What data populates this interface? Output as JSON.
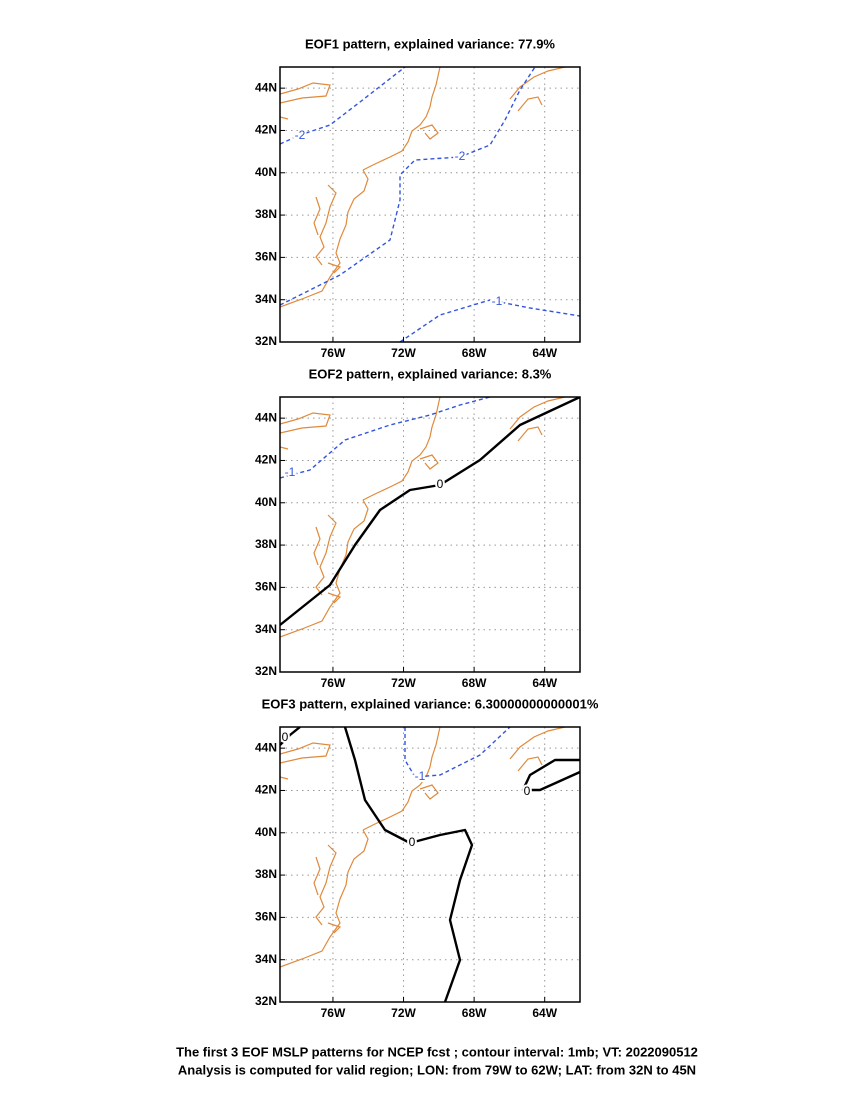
{
  "chart_data": [
    {
      "type": "contour",
      "title": "EOF1 pattern, explained variance: 77.9%",
      "xlim": [
        -79,
        -62
      ],
      "ylim": [
        32,
        45
      ],
      "xticks": [
        {
          "value": -76,
          "label": "76W"
        },
        {
          "value": -72,
          "label": "72W"
        },
        {
          "value": -68,
          "label": "68W"
        },
        {
          "value": -64,
          "label": "64W"
        }
      ],
      "yticks": [
        {
          "value": 32,
          "label": "32N"
        },
        {
          "value": 34,
          "label": "34N"
        },
        {
          "value": 36,
          "label": "36N"
        },
        {
          "value": 38,
          "label": "38N"
        },
        {
          "value": 40,
          "label": "40N"
        },
        {
          "value": 42,
          "label": "42N"
        },
        {
          "value": 44,
          "label": "44N"
        }
      ],
      "grid": true,
      "contours": [
        {
          "level": -2,
          "color": "#3355dd",
          "dashed": true
        },
        {
          "level": -2,
          "color": "#3355dd",
          "dashed": true
        },
        {
          "level": -1,
          "color": "#3355dd",
          "dashed": true
        }
      ]
    },
    {
      "type": "contour",
      "title": "EOF2 pattern, explained variance: 8.3%",
      "xlim": [
        -79,
        -62
      ],
      "ylim": [
        32,
        45
      ],
      "xticks": [
        {
          "value": -76,
          "label": "76W"
        },
        {
          "value": -72,
          "label": "72W"
        },
        {
          "value": -68,
          "label": "68W"
        },
        {
          "value": -64,
          "label": "64W"
        }
      ],
      "yticks": [
        {
          "value": 32,
          "label": "32N"
        },
        {
          "value": 34,
          "label": "34N"
        },
        {
          "value": 36,
          "label": "36N"
        },
        {
          "value": 38,
          "label": "38N"
        },
        {
          "value": 40,
          "label": "40N"
        },
        {
          "value": 42,
          "label": "42N"
        },
        {
          "value": 44,
          "label": "44N"
        }
      ],
      "grid": true,
      "contours": [
        {
          "level": -1,
          "color": "#3355dd",
          "dashed": true
        },
        {
          "level": 0,
          "color": "#000000",
          "dashed": false
        }
      ]
    },
    {
      "type": "contour",
      "title": "EOF3 pattern, explained variance: 6.30000000000001%",
      "xlim": [
        -79,
        -62
      ],
      "ylim": [
        32,
        45
      ],
      "xticks": [
        {
          "value": -76,
          "label": "76W"
        },
        {
          "value": -72,
          "label": "72W"
        },
        {
          "value": -68,
          "label": "68W"
        },
        {
          "value": -64,
          "label": "64W"
        }
      ],
      "yticks": [
        {
          "value": 32,
          "label": "32N"
        },
        {
          "value": 34,
          "label": "34N"
        },
        {
          "value": 36,
          "label": "36N"
        },
        {
          "value": 38,
          "label": "38N"
        },
        {
          "value": 40,
          "label": "40N"
        },
        {
          "value": 42,
          "label": "42N"
        },
        {
          "value": 44,
          "label": "44N"
        }
      ],
      "grid": true,
      "contours": [
        {
          "level": 0,
          "color": "#000000",
          "dashed": false
        },
        {
          "level": 0,
          "color": "#000000",
          "dashed": false
        },
        {
          "level": 0,
          "color": "#000000",
          "dashed": false
        },
        {
          "level": -1,
          "color": "#3355dd",
          "dashed": true
        }
      ]
    }
  ],
  "caption": [
    "The first 3 EOF MSLP patterns for NCEP fcst ; contour interval: 1mb; VT: 2022090512",
    "Analysis is computed for valid region; LON: from 79W to 62W; LAT: from 32N to 45N"
  ]
}
